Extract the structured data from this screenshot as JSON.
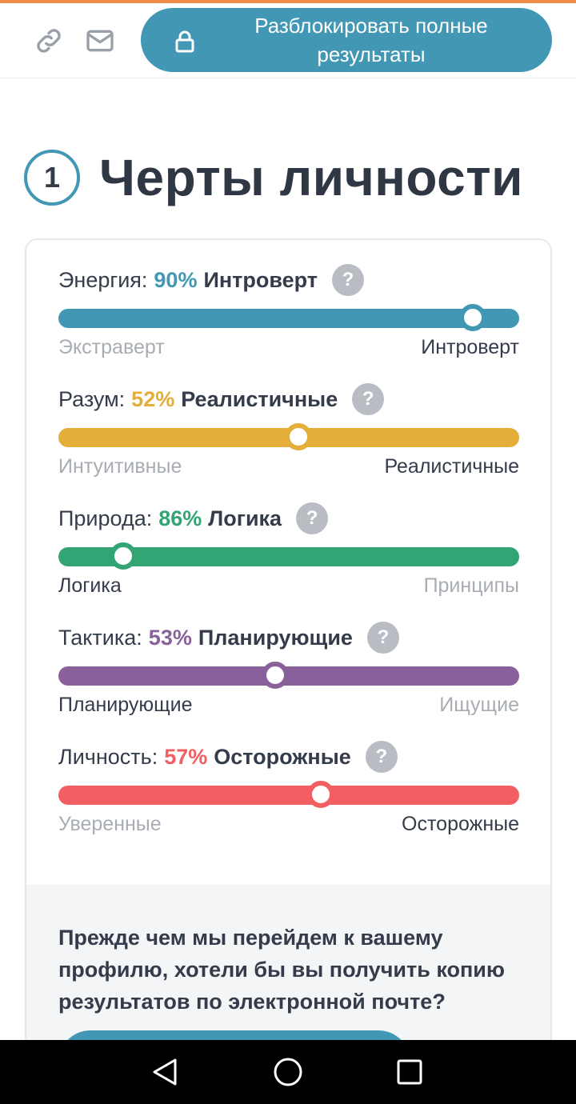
{
  "colors": {
    "accent": "#4298b4",
    "energy": "#4298b4",
    "mind": "#e4ae3a",
    "nature": "#33a474",
    "tactics": "#88619a",
    "identity": "#f25e62"
  },
  "header": {
    "link_icon": "link-icon",
    "mail_icon": "mail-icon",
    "lock_icon": "lock-icon",
    "unlock_label": "Разблокировать полные результаты"
  },
  "section": {
    "number": "1",
    "title": "Черты личности"
  },
  "traits": [
    {
      "name": "Энергия:",
      "percent_text": "90%",
      "percent": 90,
      "label": "Интроверт",
      "left": "Экстраверт",
      "right": "Интроверт",
      "active": "right",
      "knob_position": 90,
      "color": "#4298b4"
    },
    {
      "name": "Разум:",
      "percent_text": "52%",
      "percent": 52,
      "label": "Реалистичные",
      "left": "Интуитивные",
      "right": "Реалистичные",
      "active": "right",
      "knob_position": 52,
      "color": "#e4ae3a"
    },
    {
      "name": "Природа:",
      "percent_text": "86%",
      "percent": 86,
      "label": "Логика",
      "left": "Логика",
      "right": "Принципы",
      "active": "left",
      "knob_position": 14,
      "color": "#33a474"
    },
    {
      "name": "Тактика:",
      "percent_text": "53%",
      "percent": 53,
      "label": "Планирующие",
      "left": "Планирующие",
      "right": "Ищущие",
      "active": "left",
      "knob_position": 47,
      "color": "#88619a"
    },
    {
      "name": "Личность:",
      "percent_text": "57%",
      "percent": 57,
      "label": "Осторожные",
      "left": "Уверенные",
      "right": "Осторожные",
      "active": "right",
      "knob_position": 57,
      "color": "#f25e62"
    }
  ],
  "help_glyph": "?",
  "email_prompt": {
    "question": "Прежде чем мы перейдем к вашему профилю, хотели бы вы получить копию результатов по электронной почте?"
  },
  "navbar": {
    "back_icon": "back-triangle-icon",
    "home_icon": "home-circle-icon",
    "recent_icon": "recent-square-icon"
  }
}
